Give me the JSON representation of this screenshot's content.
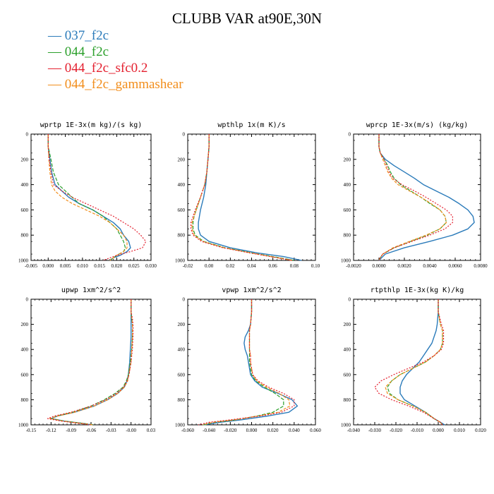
{
  "figure": {
    "title": "CLUBB VAR at90E,30N"
  },
  "legend": [
    {
      "label": "037_f2c",
      "color": "#2b7bba"
    },
    {
      "label": "044_f2c",
      "color": "#2ca02c"
    },
    {
      "label": "044_f2c_sfc0.2",
      "color": "#e4202f"
    },
    {
      "label": "044_f2c_gammashear",
      "color": "#f28e1c"
    }
  ],
  "chart_data": [
    {
      "type": "line",
      "title": "wprtp  1E-3x(m kg)/(s kg)",
      "xlim": [
        -0.005,
        0.03
      ],
      "ylim": [
        1000,
        0
      ],
      "xticks": [
        "-0.005",
        "0.000",
        "0.005",
        "0.010",
        "0.015",
        "0.020",
        "0.025",
        "0.030"
      ],
      "yticks": [
        "0",
        "200",
        "400",
        "600",
        "800",
        "1000"
      ],
      "y": [
        0,
        100,
        200,
        300,
        400,
        450,
        500,
        550,
        600,
        650,
        700,
        750,
        800,
        850,
        900,
        930,
        960,
        980,
        1000
      ],
      "series": [
        {
          "name": "037_f2c",
          "values": [
            0,
            0,
            0.0005,
            0.001,
            0.002,
            0.004,
            0.006,
            0.009,
            0.013,
            0.016,
            0.019,
            0.021,
            0.022,
            0.0235,
            0.024,
            0.023,
            0.021,
            0.019,
            0.018
          ]
        },
        {
          "name": "044_f2c",
          "values": [
            0,
            0,
            0.0008,
            0.0015,
            0.003,
            0.005,
            0.007,
            0.009,
            0.013,
            0.016,
            0.018,
            0.02,
            0.021,
            0.022,
            0.0225,
            0.022,
            0.02,
            0.019,
            0.018
          ]
        },
        {
          "name": "044_f2c_sfc0.2",
          "values": [
            0,
            0,
            0.0003,
            0.0008,
            0.0015,
            0.004,
            0.007,
            0.011,
            0.015,
            0.019,
            0.022,
            0.025,
            0.027,
            0.0285,
            0.0275,
            0.024,
            0.02,
            0.018,
            0.016
          ]
        },
        {
          "name": "044_f2c_gammashear",
          "values": [
            0,
            0,
            0.0002,
            0.0005,
            0.001,
            0.002,
            0.004,
            0.007,
            0.011,
            0.015,
            0.018,
            0.02,
            0.022,
            0.023,
            0.023,
            0.022,
            0.02,
            0.019,
            0.018
          ]
        }
      ]
    },
    {
      "type": "line",
      "title": "wpthlp  1x(m K)/s",
      "xlim": [
        -0.02,
        0.1
      ],
      "ylim": [
        1000,
        0
      ],
      "xticks": [
        "-0.02",
        "0.00",
        "0.02",
        "0.04",
        "0.06",
        "0.08",
        "0.10"
      ],
      "yticks": [
        "0",
        "200",
        "400",
        "600",
        "800",
        "1000"
      ],
      "y": [
        0,
        100,
        200,
        300,
        400,
        500,
        600,
        650,
        700,
        750,
        800,
        850,
        900,
        940,
        970,
        1000
      ],
      "series": [
        {
          "name": "037_f2c",
          "values": [
            0,
            0,
            -0.001,
            -0.002,
            -0.003,
            -0.005,
            -0.008,
            -0.009,
            -0.01,
            -0.01,
            -0.008,
            0.0,
            0.02,
            0.045,
            0.07,
            0.087
          ]
        },
        {
          "name": "044_f2c",
          "values": [
            0,
            0,
            -0.001,
            -0.002,
            -0.004,
            -0.008,
            -0.012,
            -0.014,
            -0.015,
            -0.015,
            -0.013,
            -0.005,
            0.015,
            0.04,
            0.06,
            0.08
          ]
        },
        {
          "name": "044_f2c_sfc0.2",
          "values": [
            0,
            0,
            -0.001,
            -0.002,
            -0.004,
            -0.008,
            -0.013,
            -0.015,
            -0.017,
            -0.017,
            -0.015,
            -0.007,
            0.013,
            0.038,
            0.058,
            0.078
          ]
        },
        {
          "name": "044_f2c_gammashear",
          "values": [
            0,
            0,
            -0.001,
            -0.002,
            -0.004,
            -0.008,
            -0.012,
            -0.014,
            -0.016,
            -0.016,
            -0.014,
            -0.006,
            0.014,
            0.039,
            0.058,
            0.078
          ]
        }
      ]
    },
    {
      "type": "line",
      "title": "wprcp  1E-3x(m/s) (kg/kg)",
      "xlim": [
        -0.002,
        0.008
      ],
      "ylim": [
        1000,
        0
      ],
      "xticks": [
        "-0.0020",
        "0.0000",
        "0.0020",
        "0.0040",
        "0.0060",
        "0.0080"
      ],
      "yticks": [
        "0",
        "200",
        "400",
        "600",
        "800",
        "1000"
      ],
      "y": [
        0,
        100,
        150,
        200,
        250,
        300,
        350,
        400,
        450,
        500,
        550,
        600,
        650,
        700,
        750,
        800,
        850,
        900,
        950,
        980,
        1000
      ],
      "series": [
        {
          "name": "037_f2c",
          "values": [
            0,
            0,
            0.0001,
            0.0005,
            0.0012,
            0.002,
            0.0028,
            0.0035,
            0.0045,
            0.0055,
            0.0063,
            0.007,
            0.0074,
            0.0075,
            0.007,
            0.0058,
            0.004,
            0.002,
            0.0005,
            0.0002,
            0
          ]
        },
        {
          "name": "044_f2c",
          "values": [
            0,
            0,
            0.0001,
            0.0004,
            0.0007,
            0.0009,
            0.0012,
            0.0017,
            0.0025,
            0.0033,
            0.004,
            0.0048,
            0.0052,
            0.0053,
            0.0048,
            0.0038,
            0.0025,
            0.0012,
            0.0003,
            0.0001,
            0
          ]
        },
        {
          "name": "044_f2c_sfc0.2",
          "values": [
            0,
            0,
            0.0001,
            0.0004,
            0.0006,
            0.0008,
            0.0011,
            0.0018,
            0.0028,
            0.0037,
            0.0045,
            0.0053,
            0.0058,
            0.0058,
            0.0052,
            0.004,
            0.0026,
            0.0012,
            0.0003,
            0.0001,
            0
          ]
        },
        {
          "name": "044_f2c_gammashear",
          "values": [
            0,
            0,
            0.0001,
            0.0003,
            0.0005,
            0.0007,
            0.001,
            0.0015,
            0.0024,
            0.0033,
            0.0041,
            0.0048,
            0.0052,
            0.0053,
            0.0048,
            0.0037,
            0.0024,
            0.0011,
            0.0003,
            0.0001,
            0
          ]
        }
      ]
    },
    {
      "type": "line",
      "title": "upwp  1xm^2/s^2",
      "xlim": [
        -0.15,
        0.03
      ],
      "ylim": [
        1000,
        0
      ],
      "xticks": [
        "-0.15",
        "-0.12",
        "-0.09",
        "-0.06",
        "-0.03",
        "-0.00",
        "0.03"
      ],
      "yticks": [
        "0",
        "200",
        "400",
        "600",
        "800",
        "1000"
      ],
      "y": [
        0,
        100,
        150,
        200,
        300,
        400,
        500,
        600,
        650,
        700,
        750,
        800,
        850,
        900,
        930,
        950,
        970,
        990,
        1000
      ],
      "series": [
        {
          "name": "037_f2c",
          "values": [
            0,
            0,
            0,
            0,
            0,
            -0.001,
            -0.002,
            -0.004,
            -0.006,
            -0.01,
            -0.02,
            -0.035,
            -0.055,
            -0.085,
            -0.11,
            -0.12,
            -0.1,
            -0.07,
            -0.06
          ]
        },
        {
          "name": "044_f2c",
          "values": [
            0,
            0,
            0.001,
            0.002,
            0.002,
            0.001,
            -0.001,
            -0.004,
            -0.007,
            -0.012,
            -0.024,
            -0.04,
            -0.06,
            -0.088,
            -0.112,
            -0.12,
            -0.1,
            -0.07,
            -0.055
          ]
        },
        {
          "name": "044_f2c_sfc0.2",
          "values": [
            0,
            0,
            0.002,
            0.003,
            0.003,
            0.002,
            0,
            -0.003,
            -0.006,
            -0.011,
            -0.022,
            -0.038,
            -0.06,
            -0.09,
            -0.115,
            -0.125,
            -0.105,
            -0.075,
            -0.06
          ]
        },
        {
          "name": "044_f2c_gammashear",
          "values": [
            0,
            0,
            0.001,
            0.002,
            0.002,
            0.001,
            0,
            -0.003,
            -0.005,
            -0.01,
            -0.02,
            -0.035,
            -0.055,
            -0.085,
            -0.11,
            -0.122,
            -0.102,
            -0.072,
            -0.058
          ]
        }
      ]
    },
    {
      "type": "line",
      "title": "vpwp  1xm^2/s^2",
      "xlim": [
        -0.06,
        0.06
      ],
      "ylim": [
        1000,
        0
      ],
      "xticks": [
        "-0.060",
        "-0.040",
        "-0.020",
        "0.000",
        "0.020",
        "0.040",
        "0.060"
      ],
      "yticks": [
        "0",
        "200",
        "400",
        "600",
        "800",
        "1000"
      ],
      "y": [
        0,
        100,
        200,
        250,
        300,
        350,
        400,
        450,
        500,
        550,
        600,
        650,
        700,
        750,
        800,
        850,
        900,
        930,
        960,
        980,
        1000
      ],
      "series": [
        {
          "name": "037_f2c",
          "values": [
            0,
            0,
            -0.001,
            -0.003,
            -0.006,
            -0.007,
            -0.006,
            -0.004,
            -0.003,
            -0.002,
            -0.001,
            0.003,
            0.01,
            0.025,
            0.038,
            0.043,
            0.035,
            0.015,
            -0.01,
            -0.03,
            -0.045
          ]
        },
        {
          "name": "044_f2c",
          "values": [
            0,
            0,
            -0.001,
            -0.002,
            -0.002,
            -0.002,
            -0.002,
            -0.002,
            -0.002,
            -0.001,
            0,
            0.004,
            0.012,
            0.022,
            0.03,
            0.03,
            0.02,
            0.005,
            -0.015,
            -0.035,
            -0.045
          ]
        },
        {
          "name": "044_f2c_sfc0.2",
          "values": [
            0,
            0,
            -0.001,
            -0.002,
            -0.002,
            -0.002,
            -0.002,
            -0.001,
            -0.001,
            0,
            0.001,
            0.006,
            0.016,
            0.03,
            0.04,
            0.04,
            0.028,
            0.008,
            -0.02,
            -0.04,
            -0.05
          ]
        },
        {
          "name": "044_f2c_gammashear",
          "values": [
            0,
            0,
            -0.001,
            -0.002,
            -0.002,
            -0.002,
            -0.002,
            -0.001,
            -0.001,
            0,
            0.001,
            0.005,
            0.014,
            0.026,
            0.035,
            0.036,
            0.025,
            0.006,
            -0.016,
            -0.036,
            -0.046
          ]
        }
      ]
    },
    {
      "type": "line",
      "title": "rtpthlp  1E-3x(kg K)/kg",
      "xlim": [
        -0.04,
        0.02
      ],
      "ylim": [
        1000,
        0
      ],
      "xticks": [
        "-0.040",
        "-0.030",
        "-0.020",
        "-0.010",
        "0.000",
        "0.010",
        "0.020"
      ],
      "yticks": [
        "0",
        "200",
        "400",
        "600",
        "800",
        "1000"
      ],
      "y": [
        0,
        100,
        200,
        250,
        300,
        350,
        400,
        450,
        500,
        550,
        600,
        650,
        700,
        750,
        800,
        850,
        900,
        950,
        980,
        1000
      ],
      "series": [
        {
          "name": "037_f2c",
          "values": [
            0,
            0,
            -0.0005,
            -0.001,
            -0.002,
            -0.003,
            -0.005,
            -0.007,
            -0.009,
            -0.012,
            -0.015,
            -0.017,
            -0.018,
            -0.018,
            -0.016,
            -0.011,
            -0.006,
            -0.002,
            0.001,
            0.003
          ]
        },
        {
          "name": "044_f2c",
          "values": [
            0,
            0,
            0.001,
            0.002,
            0.002,
            0.002,
            0.001,
            -0.002,
            -0.006,
            -0.012,
            -0.018,
            -0.022,
            -0.024,
            -0.023,
            -0.019,
            -0.012,
            -0.006,
            -0.002,
            0.001,
            0.002
          ]
        },
        {
          "name": "044_f2c_sfc0.2",
          "values": [
            0,
            0,
            0.0015,
            0.0025,
            0.0025,
            0.0025,
            0.0015,
            -0.002,
            -0.007,
            -0.014,
            -0.021,
            -0.027,
            -0.03,
            -0.028,
            -0.022,
            -0.014,
            -0.007,
            -0.002,
            0.001,
            0.002
          ]
        },
        {
          "name": "044_f2c_gammashear",
          "values": [
            0,
            0,
            0.001,
            0.002,
            0.002,
            0.002,
            0.001,
            -0.002,
            -0.006,
            -0.012,
            -0.018,
            -0.022,
            -0.025,
            -0.024,
            -0.019,
            -0.012,
            -0.006,
            -0.002,
            0.001,
            0.002
          ]
        }
      ]
    }
  ]
}
